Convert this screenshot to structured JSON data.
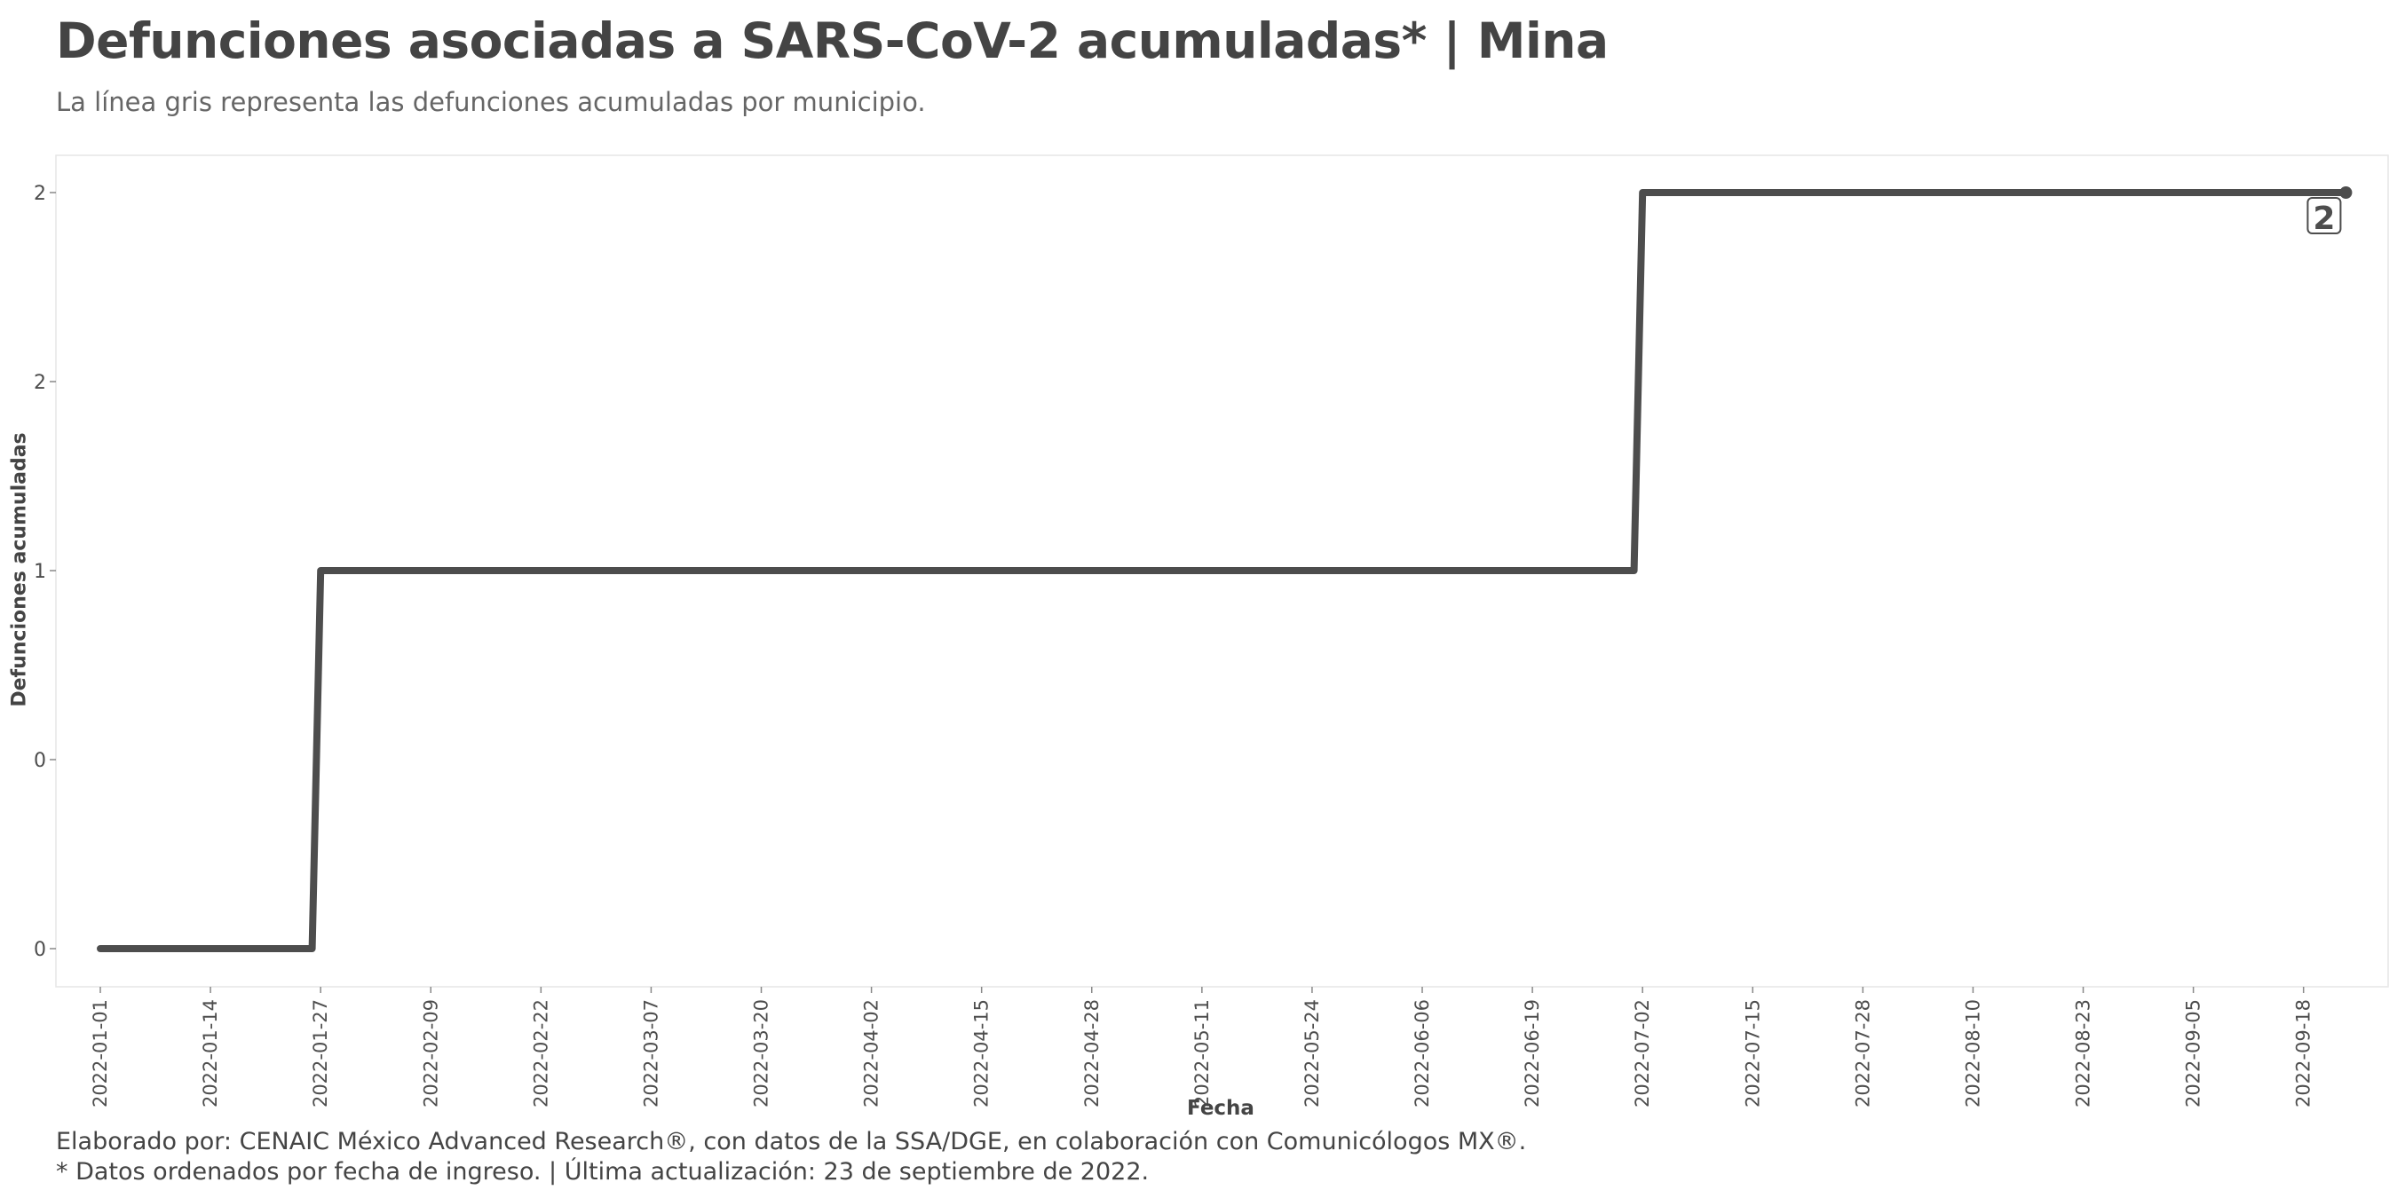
{
  "header": {
    "title": "Defunciones asociadas a SARS-CoV-2 acumuladas* | Mina",
    "subtitle": "La línea gris representa las defunciones acumuladas por municipio."
  },
  "footer": {
    "caption_line1": "Elaborado por: CENAIC México Advanced Research®, con datos de la SSA/DGE, en colaboración con Comunicólogos MX®.",
    "caption_line2": "* Datos ordenados por fecha de ingreso. | Última actualización: 23 de septiembre de 2022."
  },
  "colors": {
    "line": "#4d4d4d",
    "panel_border": "#e6e6e6",
    "tick_text": "#4d4d4d"
  },
  "chart_data": {
    "type": "line",
    "step": true,
    "xlabel": "Fecha",
    "ylabel": "Defunciones acumuladas",
    "x_start": "2022-01-01",
    "x_end": "2022-09-23",
    "ylim": [
      0,
      2
    ],
    "y_ticks": [
      {
        "value": 0,
        "label": "0"
      },
      {
        "value": 0.5,
        "label": "0"
      },
      {
        "value": 1,
        "label": "1"
      },
      {
        "value": 1.5,
        "label": "2"
      },
      {
        "value": 2,
        "label": "2"
      }
    ],
    "x_ticks": [
      "2022-01-01",
      "2022-01-14",
      "2022-01-27",
      "2022-02-09",
      "2022-02-22",
      "2022-03-07",
      "2022-03-20",
      "2022-04-02",
      "2022-04-15",
      "2022-04-28",
      "2022-05-11",
      "2022-05-24",
      "2022-06-06",
      "2022-06-19",
      "2022-07-02",
      "2022-07-15",
      "2022-07-28",
      "2022-08-10",
      "2022-08-23",
      "2022-09-05",
      "2022-09-18"
    ],
    "points": [
      {
        "x": "2022-01-01",
        "y": 0
      },
      {
        "x": "2022-01-26",
        "y": 0
      },
      {
        "x": "2022-01-27",
        "y": 1
      },
      {
        "x": "2022-07-01",
        "y": 1
      },
      {
        "x": "2022-07-02",
        "y": 2
      },
      {
        "x": "2022-09-23",
        "y": 2
      }
    ],
    "end_label": "2",
    "grid": false,
    "legend": "none"
  }
}
